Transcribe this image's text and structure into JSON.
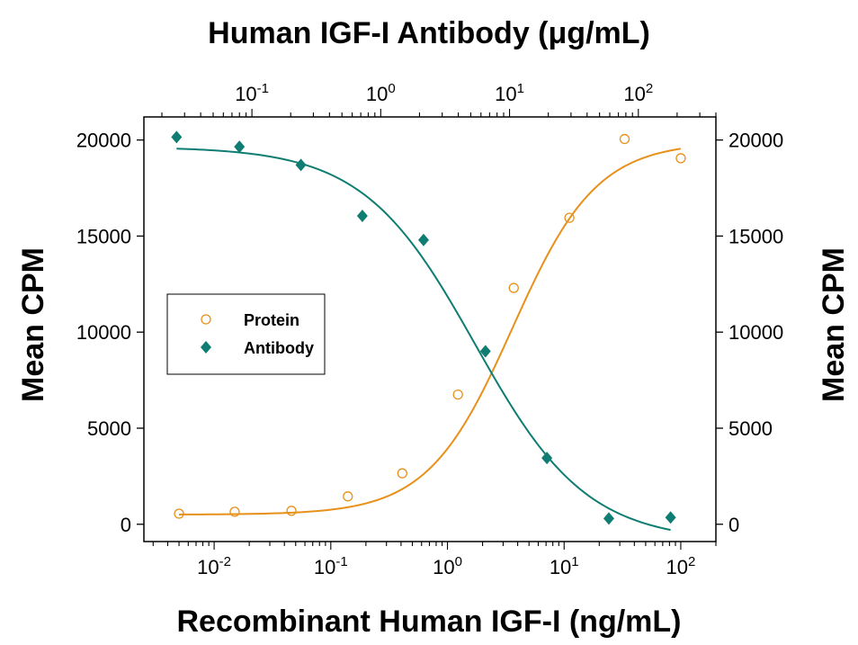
{
  "chart_data": {
    "type": "scatter",
    "top_title": "Human IGF-I Antibody (μg/mL)",
    "xlabel": "Recombinant Human IGF-I (ng/mL)",
    "ylabel_left": "Mean CPM",
    "ylabel_right": "Mean CPM",
    "x_scale": "log",
    "xlim": [
      0.0025,
      200
    ],
    "top_x_scale": "log",
    "top_xlim": [
      0.0145,
      400
    ],
    "ylim": [
      -900,
      21200
    ],
    "y_ticks": [
      0,
      5000,
      10000,
      15000,
      20000
    ],
    "y_tick_labels": [
      "0",
      "5000",
      "10000",
      "15000",
      "20000"
    ],
    "x_ticks": [
      {
        "base": "10",
        "exp": "-2",
        "value": 0.01
      },
      {
        "base": "10",
        "exp": "-1",
        "value": 0.1
      },
      {
        "base": "10",
        "exp": "0",
        "value": 1
      },
      {
        "base": "10",
        "exp": "1",
        "value": 10
      },
      {
        "base": "10",
        "exp": "2",
        "value": 100
      }
    ],
    "top_x_ticks": [
      {
        "base": "10",
        "exp": "-1",
        "value": 0.1
      },
      {
        "base": "10",
        "exp": "0",
        "value": 1
      },
      {
        "base": "10",
        "exp": "1",
        "value": 10
      },
      {
        "base": "10",
        "exp": "2",
        "value": 100
      }
    ],
    "legend": {
      "position": "center-left",
      "entries": [
        "Protein",
        "Antibody"
      ]
    },
    "grid": false,
    "series": [
      {
        "name": "Protein",
        "axis": "bottom",
        "marker": "open-circle",
        "color": "#e8901a",
        "points": [
          {
            "x": 0.005,
            "y": 550
          },
          {
            "x": 0.015,
            "y": 650
          },
          {
            "x": 0.046,
            "y": 700
          },
          {
            "x": 0.14,
            "y": 1450
          },
          {
            "x": 0.41,
            "y": 2650
          },
          {
            "x": 1.23,
            "y": 6750
          },
          {
            "x": 3.7,
            "y": 12300
          },
          {
            "x": 11.1,
            "y": 15950
          },
          {
            "x": 33,
            "y": 20050
          },
          {
            "x": 100,
            "y": 19050
          }
        ],
        "fit": {
          "bottom": 500,
          "top": 19900,
          "ec50": 3.6,
          "hill": 1.2,
          "xmin": 0.005,
          "xmax": 100
        }
      },
      {
        "name": "Antibody",
        "axis": "top",
        "marker": "filled-diamond",
        "color": "#0f7d72",
        "points": [
          {
            "x": 0.026,
            "y": 20150
          },
          {
            "x": 0.08,
            "y": 19650
          },
          {
            "x": 0.24,
            "y": 18700
          },
          {
            "x": 0.72,
            "y": 16050
          },
          {
            "x": 2.15,
            "y": 14800
          },
          {
            "x": 6.5,
            "y": 9000
          },
          {
            "x": 19.5,
            "y": 3450
          },
          {
            "x": 59,
            "y": 300
          },
          {
            "x": 178,
            "y": 350
          }
        ],
        "fit": {
          "bottom": -900,
          "top": 19650,
          "ec50": 5.4,
          "hill": 1.0,
          "xmin": 0.026,
          "xmax": 178
        }
      }
    ]
  }
}
